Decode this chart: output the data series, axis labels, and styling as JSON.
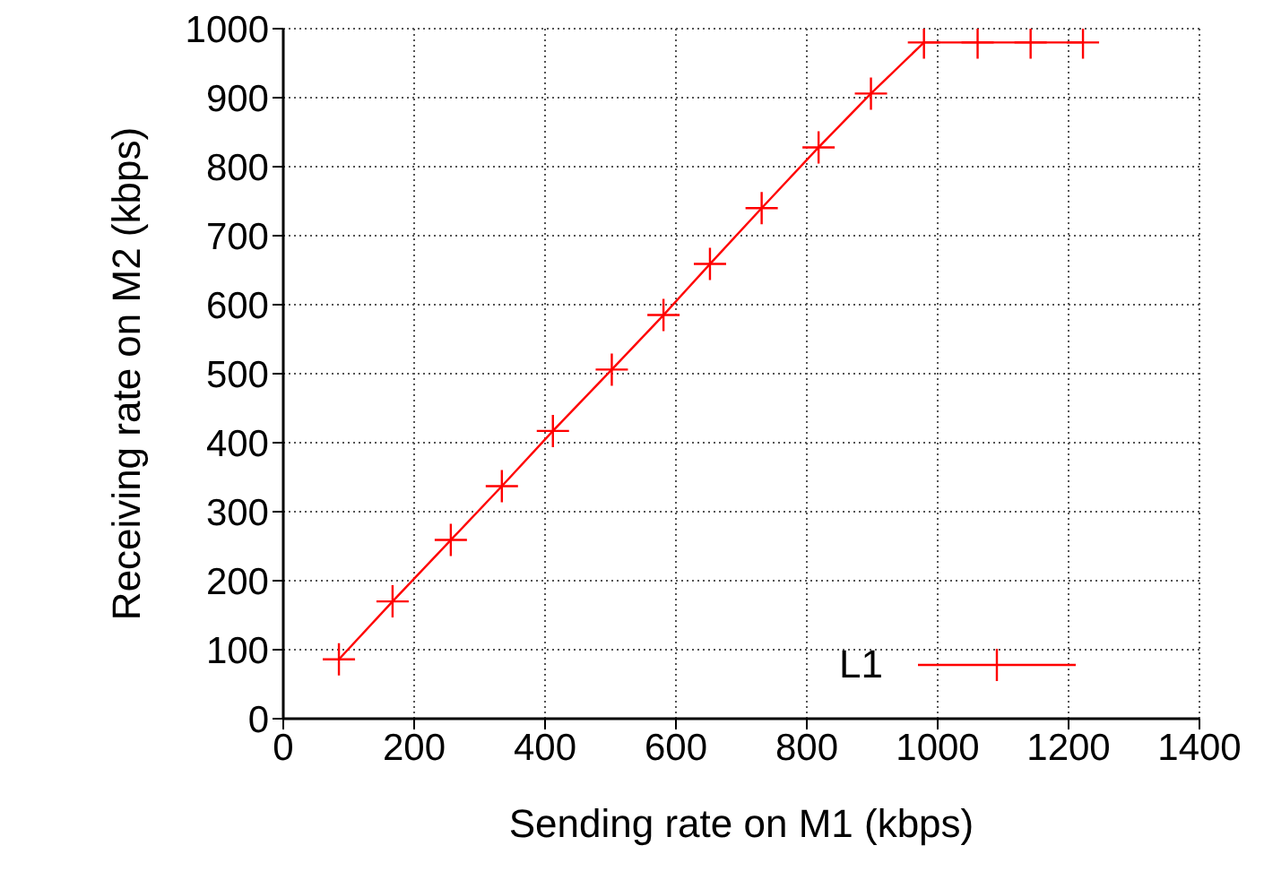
{
  "chart_data": {
    "type": "line",
    "xlabel": "Sending rate on M1 (kbps)",
    "ylabel": "Receiving rate on M2 (kbps)",
    "x": [
      85,
      167,
      256,
      334,
      412,
      502,
      581,
      652,
      731,
      818,
      898,
      979,
      1061,
      1142,
      1222
    ],
    "series": [
      {
        "name": "L1",
        "color": "#ff0000",
        "values": [
          86,
          170,
          259,
          337,
          417,
          506,
          585,
          659,
          740,
          828,
          906,
          980,
          980,
          980,
          980
        ]
      }
    ],
    "xlim": [
      0,
      1400
    ],
    "xticks": [
      0,
      200,
      400,
      600,
      800,
      1000,
      1200,
      1400
    ],
    "ylim": [
      0,
      1000
    ],
    "yticks": [
      0,
      100,
      200,
      300,
      400,
      500,
      600,
      700,
      800,
      900,
      1000
    ],
    "grid": true,
    "legend": "bottom right",
    "marker": "cross",
    "line_style": "solid"
  }
}
